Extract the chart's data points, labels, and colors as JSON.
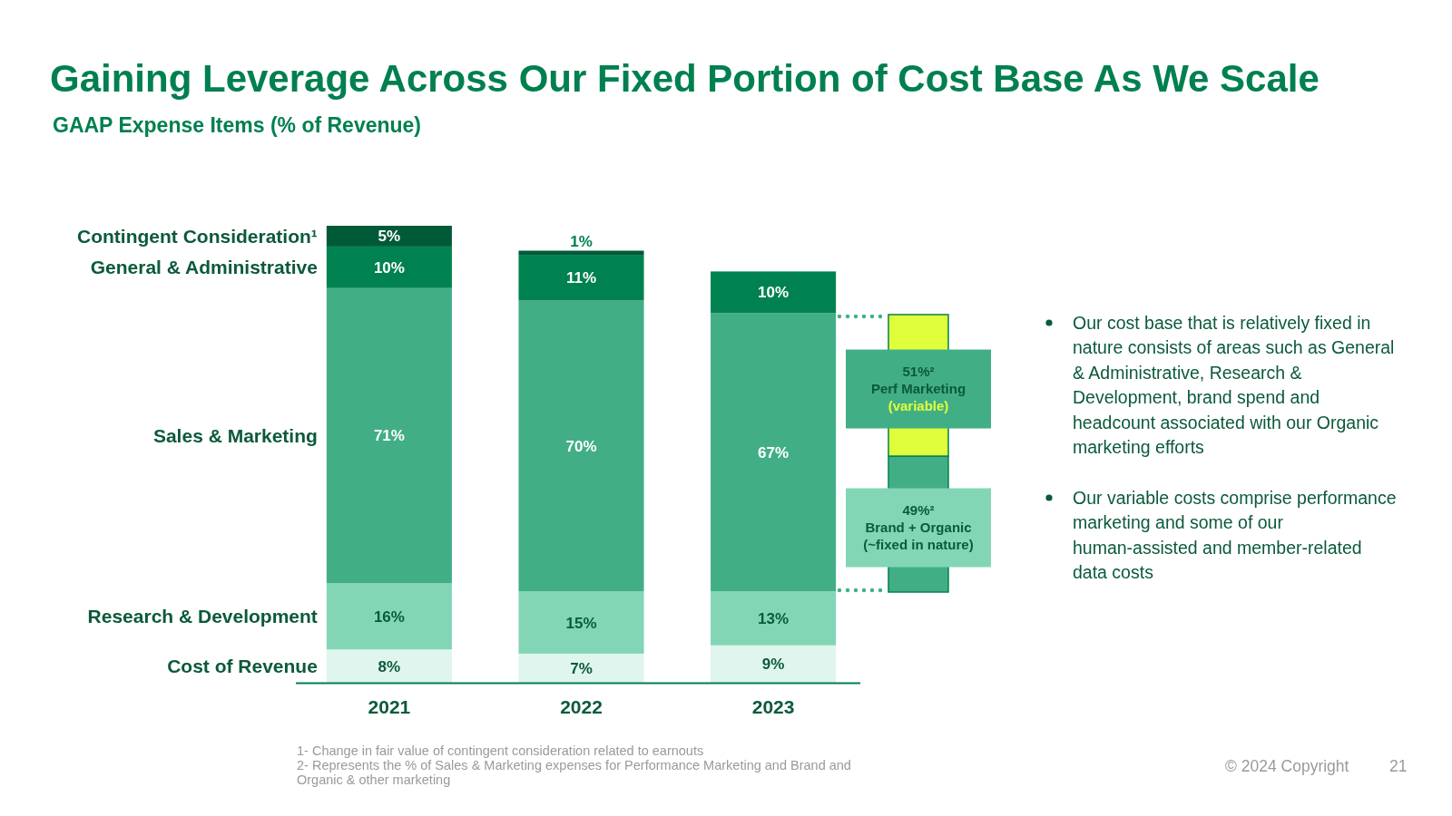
{
  "chart_data": [
    {
      "type": "bar",
      "title": "Gaining Leverage Across Our Fixed Portion of Cost Base As We Scale",
      "subtitle": "GAAP Expense Items (% of Revenue)",
      "categories": [
        "2021",
        "2022",
        "2023"
      ],
      "stacked": true,
      "legend": "left",
      "series": [
        {
          "name": "Cost of Revenue",
          "color": "#e0f5ed",
          "values": [
            8,
            7,
            9
          ],
          "value_labels": [
            "8%",
            "7%",
            "9%"
          ]
        },
        {
          "name": "Research & Development",
          "color": "#82d6b6",
          "values": [
            16,
            15,
            13
          ],
          "value_labels": [
            "16%",
            "15%",
            "13%"
          ]
        },
        {
          "name": "Sales & Marketing",
          "color": "#42ae86",
          "values": [
            71,
            70,
            67
          ],
          "value_labels": [
            "71%",
            "70%",
            "67%"
          ]
        },
        {
          "name": "General & Administrative",
          "color": "#008250",
          "values": [
            10,
            11,
            10
          ],
          "value_labels": [
            "10%",
            "11%",
            "10%"
          ]
        },
        {
          "name": "Contingent Consideration¹",
          "color": "#005a38",
          "values": [
            5,
            1,
            null
          ],
          "value_labels": [
            "5%",
            "1%",
            null
          ]
        }
      ],
      "annotations": [
        "Our cost base that is relatively fixed in nature consists of areas such as General & Administrative, Research & Development, brand spend and headcount associated with our Organic marketing efforts",
        "Our variable costs comprise performance marketing and some of our human-assisted and member-related data costs",
        "1- Change in fair value of contingent consideration related to earnouts",
        "2- Represents the % of Sales & Marketing expenses for Performance Marketing and Brand and Organic & other marketing",
        "© 2024 Copyright",
        "21"
      ]
    },
    {
      "type": "bar",
      "categories": [
        null
      ],
      "stacked": true,
      "series": [
        {
          "name": "Brand + Organic (~fixed in nature)",
          "color": "#42ae86",
          "values": [
            49
          ],
          "value_labels": [
            "49%²"
          ]
        },
        {
          "name": "Perf Marketing (variable)",
          "color": "#e0ff3a",
          "values": [
            51
          ],
          "value_labels": [
            "51%²"
          ]
        }
      ]
    }
  ]
}
